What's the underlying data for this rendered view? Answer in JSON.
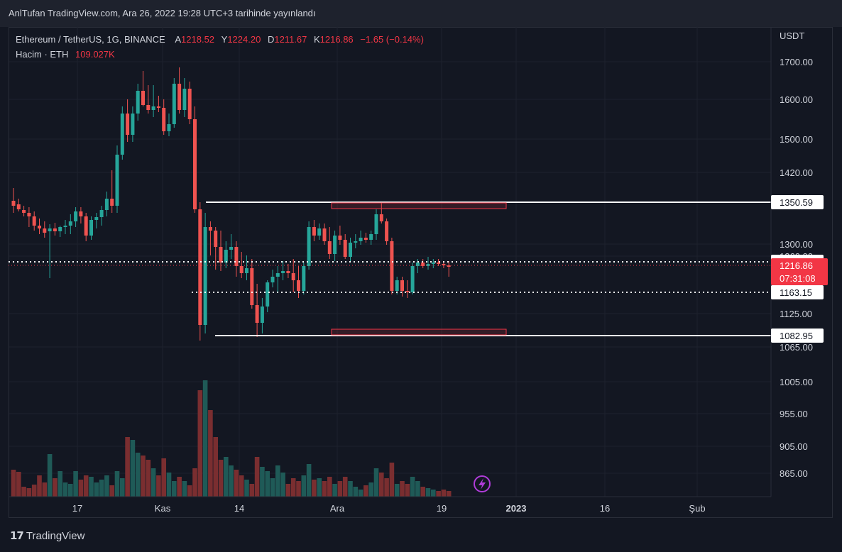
{
  "header": {
    "publish_text": "AnlTufan TradingView.com, Ara 26, 2022 19:28 UTC+3 tarihinde yayınlandı"
  },
  "legend": {
    "symbol": "Ethereum / TetherUS, 1G, BINANCE",
    "open_label": "A",
    "open_value": "1218.52",
    "high_label": "Y",
    "high_value": "1224.20",
    "low_label": "D",
    "low_value": "1211.67",
    "close_label": "K",
    "close_value": "1216.86",
    "change": "−1.65 (−0.14%)",
    "volume_label": "Hacim · ETH",
    "volume_value": "109.027K"
  },
  "axis": {
    "currency": "USDT",
    "ticks": [
      "1700.00",
      "1600.00",
      "1500.00",
      "1420.00",
      "1300.00",
      "1260.00",
      "1125.00",
      "1065.00",
      "1005.00",
      "955.00",
      "905.00",
      "865.00"
    ],
    "time_labels": [
      "17",
      "Kas",
      "14",
      "Ara",
      "19",
      "2023",
      "16",
      "Şub"
    ]
  },
  "levels": [
    {
      "label": "1350.59",
      "style": "solid"
    },
    {
      "label": "1223.81",
      "style": "dotted"
    },
    {
      "label": "1163.15",
      "style": "dotted"
    },
    {
      "label": "1082.95",
      "style": "solid"
    }
  ],
  "price_tag": {
    "price": "1216.86",
    "countdown": "07:31:08"
  },
  "colors": {
    "up": "#26a69a",
    "down": "#ef5350",
    "background": "#131722",
    "line": "#ffffff",
    "box": "#f23645"
  },
  "brand": {
    "logo": "17",
    "name": "TradingView"
  },
  "icons": [
    "lightning-icon",
    "tradingview-logo-icon"
  ]
}
